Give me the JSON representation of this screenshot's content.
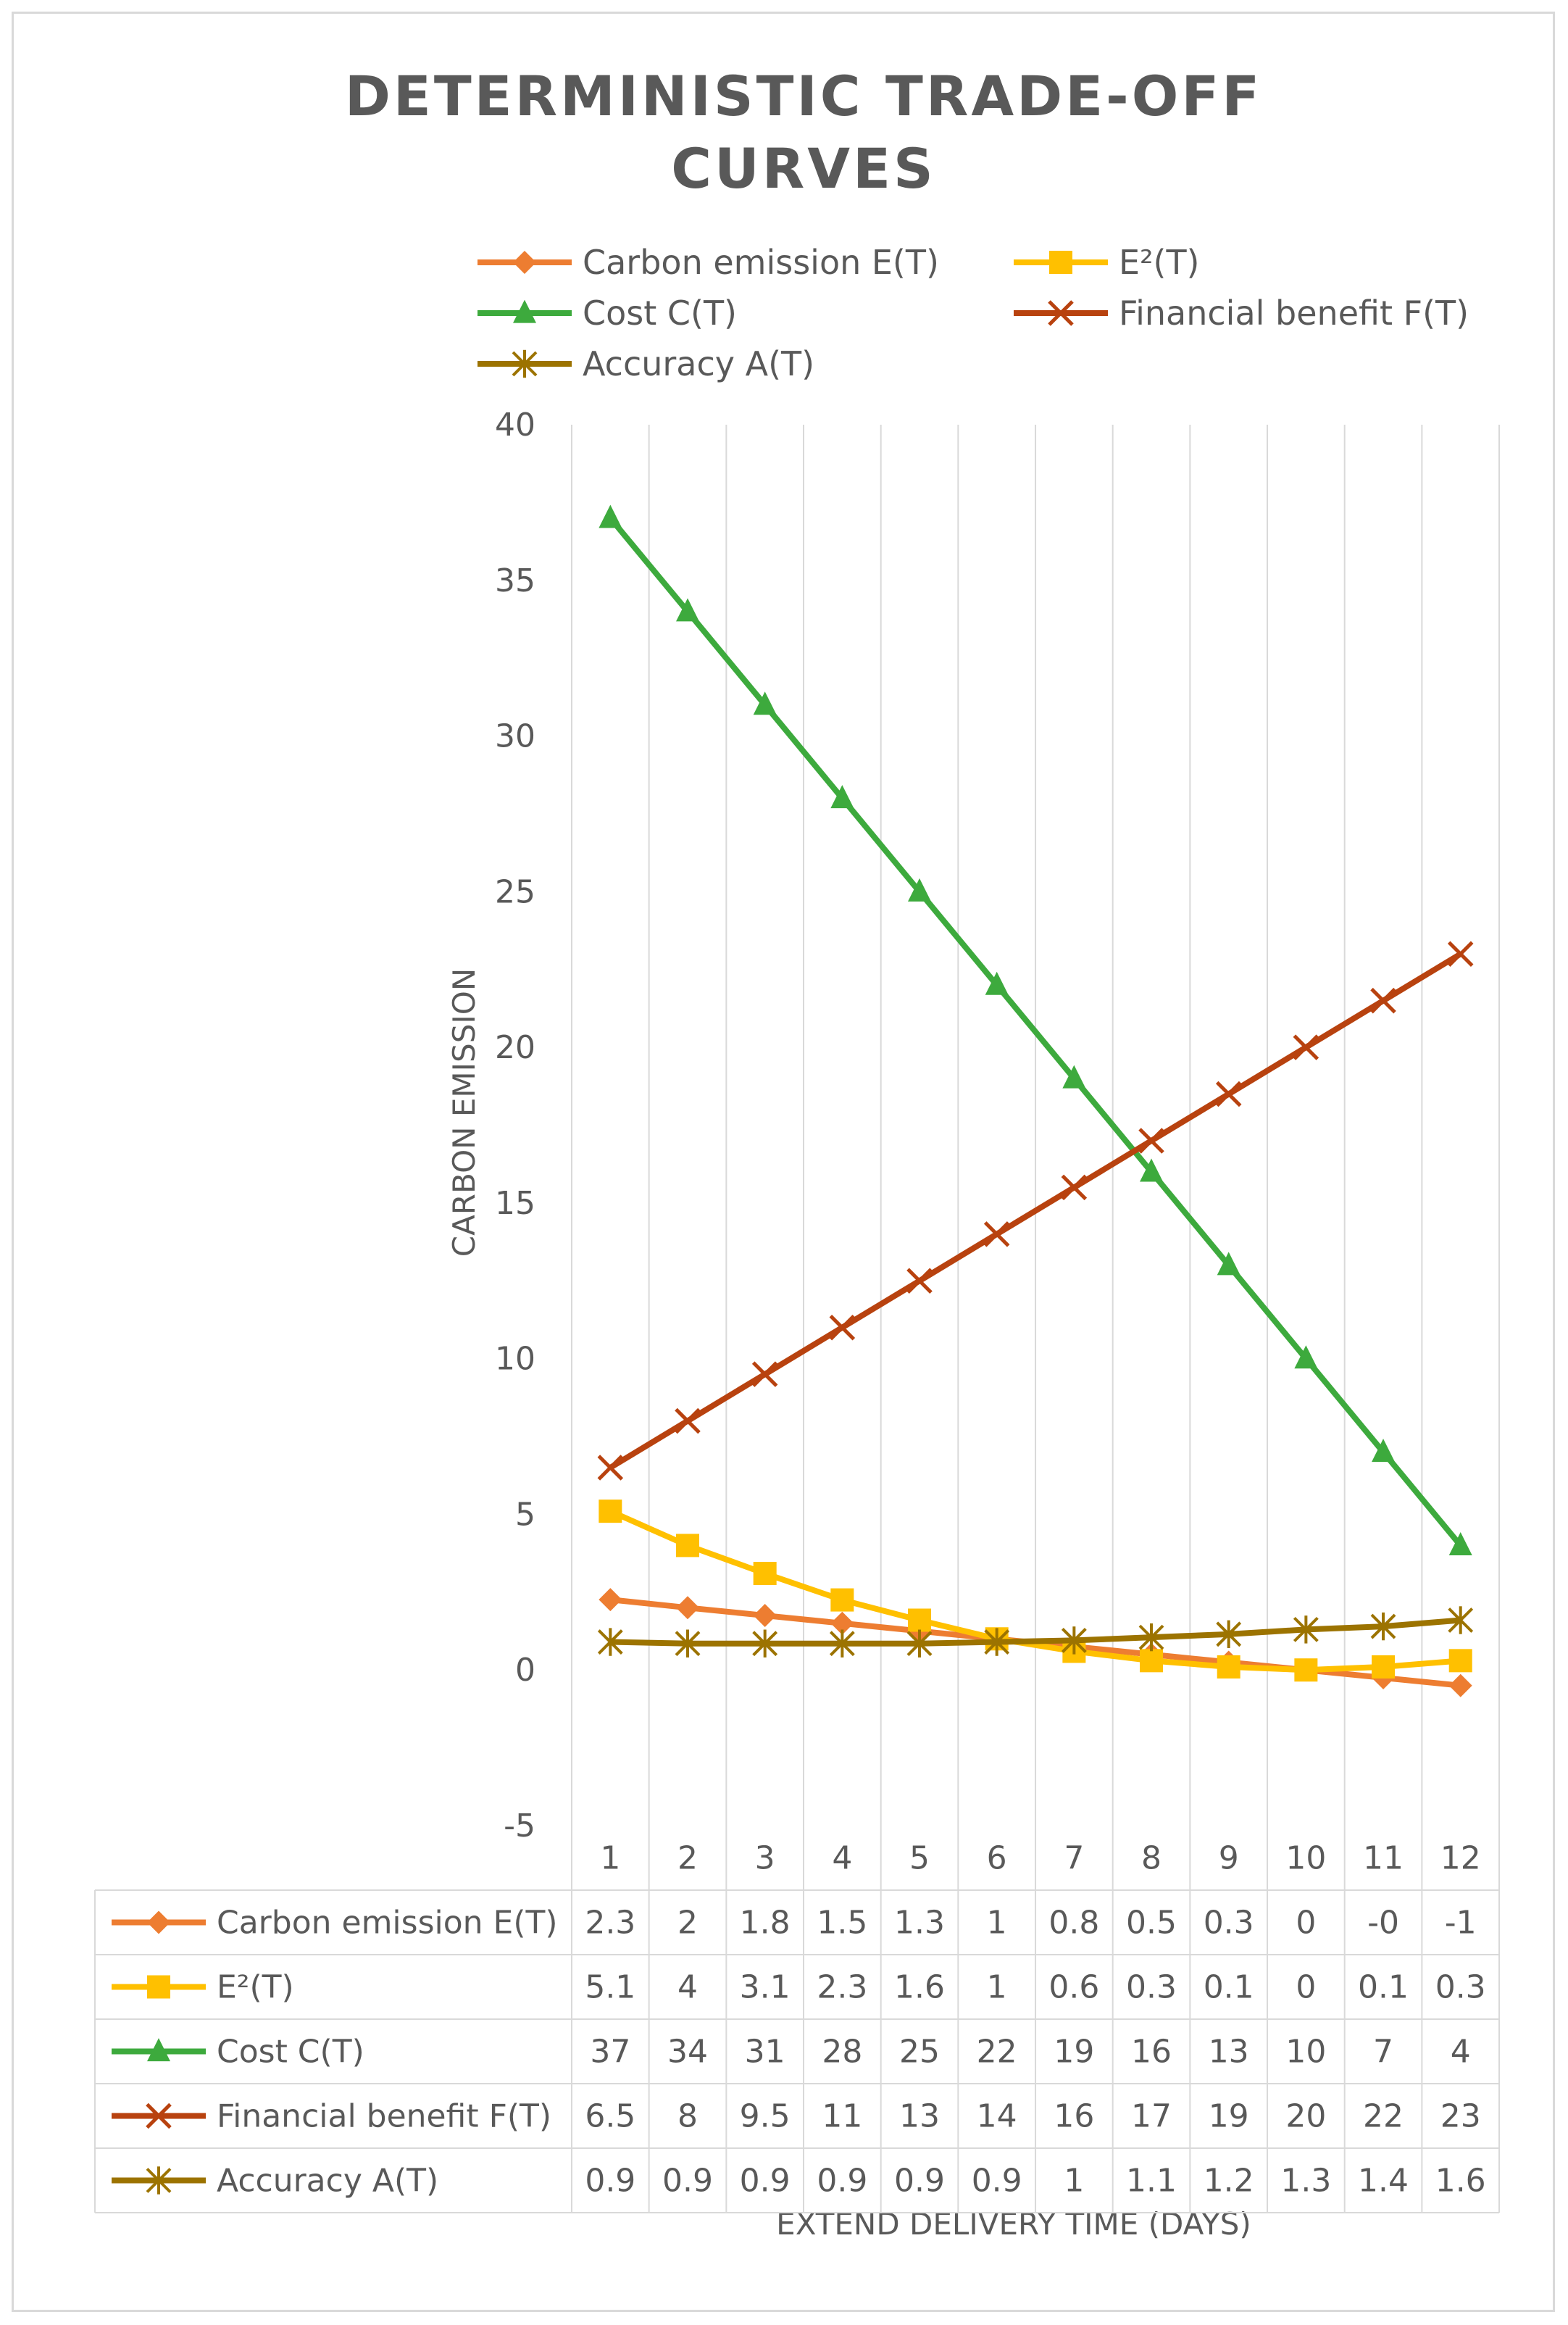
{
  "chart_data": {
    "type": "line",
    "title": "DETERMINISTIC TRADE-OFF CURVES",
    "title_lines": [
      "DETERMINISTIC TRADE-OFF",
      "CURVES"
    ],
    "xlabel": "EXTEND DELIVERY TIME (DAYS)",
    "ylabel": "CARBON EMISSION",
    "ylim": [
      -5,
      40
    ],
    "yticks": [
      -5,
      0,
      5,
      10,
      15,
      20,
      25,
      30,
      35,
      40
    ],
    "grid": "vertical",
    "legend_position": "top",
    "categories": [
      "1",
      "2",
      "3",
      "4",
      "5",
      "6",
      "7",
      "8",
      "9",
      "10",
      "11",
      "12"
    ],
    "series": [
      {
        "name": "Carbon emission E(T)",
        "color": "#ED7D31",
        "marker": "diamond",
        "values": [
          2.26,
          2.0,
          1.75,
          1.5,
          1.25,
          1.0,
          0.75,
          0.5,
          0.25,
          0.0,
          -0.25,
          -0.5
        ],
        "table_labels": [
          "2.3",
          "2",
          "1.8",
          "1.5",
          "1.3",
          "1",
          "0.8",
          "0.5",
          "0.3",
          "0",
          "-0",
          "-1"
        ]
      },
      {
        "name": "E²(T)",
        "color": "#FFC000",
        "marker": "square",
        "values": [
          5.1,
          4.0,
          3.1,
          2.25,
          1.6,
          1.0,
          0.6,
          0.3,
          0.1,
          0.0,
          0.1,
          0.3
        ],
        "table_labels": [
          "5.1",
          "4",
          "3.1",
          "2.3",
          "1.6",
          "1",
          "0.6",
          "0.3",
          "0.1",
          "0",
          "0.1",
          "0.3"
        ]
      },
      {
        "name": "Cost C(T)",
        "color": "#3DAA3D",
        "marker": "triangle",
        "values": [
          37,
          34,
          31,
          28,
          25,
          22,
          19,
          16,
          13,
          10,
          7,
          4
        ],
        "table_labels": [
          "37",
          "34",
          "31",
          "28",
          "25",
          "22",
          "19",
          "16",
          "13",
          "10",
          "7",
          "4"
        ]
      },
      {
        "name": "Financial benefit F(T)",
        "color": "#B8420F",
        "marker": "x",
        "values": [
          6.5,
          8,
          9.5,
          11,
          12.5,
          14,
          15.5,
          17,
          18.5,
          20,
          21.5,
          23
        ],
        "table_labels": [
          "6.5",
          "8",
          "9.5",
          "11",
          "13",
          "14",
          "16",
          "17",
          "19",
          "20",
          "22",
          "23"
        ]
      },
      {
        "name": "Accuracy A(T)",
        "color": "#9C7300",
        "marker": "star",
        "values": [
          0.9,
          0.85,
          0.85,
          0.85,
          0.85,
          0.9,
          0.95,
          1.05,
          1.15,
          1.3,
          1.4,
          1.6
        ],
        "table_labels": [
          "0.9",
          "0.9",
          "0.9",
          "0.9",
          "0.9",
          "0.9",
          "1",
          "1.1",
          "1.2",
          "1.3",
          "1.4",
          "1.6"
        ]
      }
    ]
  }
}
